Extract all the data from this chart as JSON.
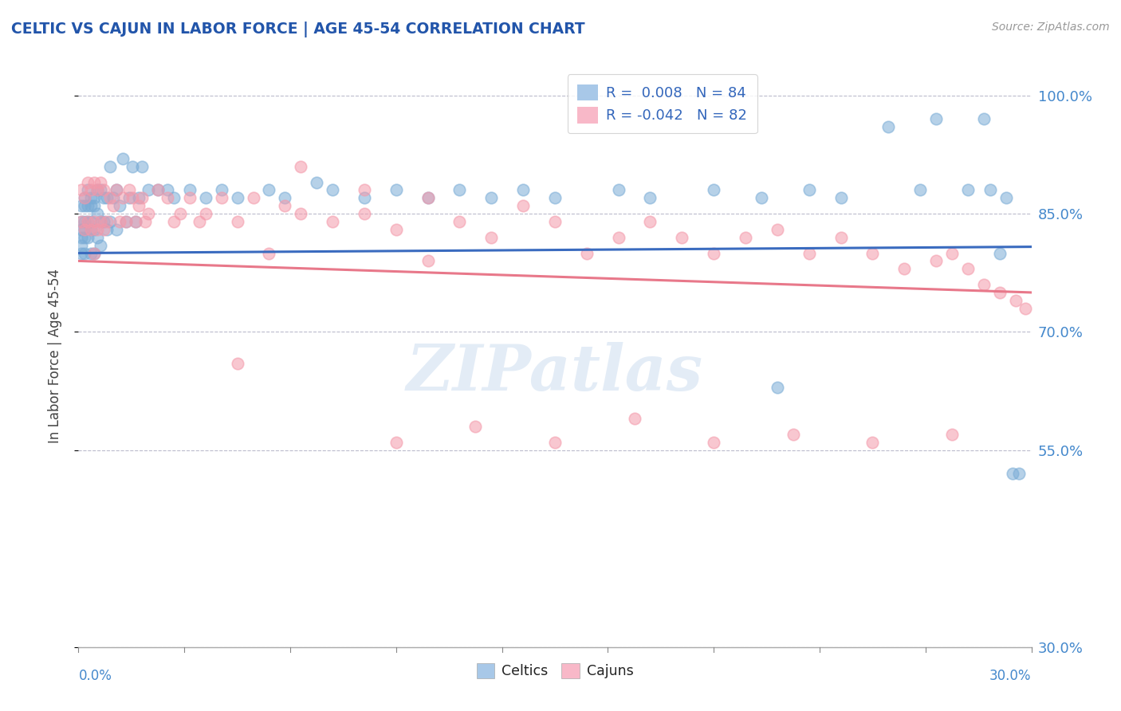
{
  "title": "CELTIC VS CAJUN IN LABOR FORCE | AGE 45-54 CORRELATION CHART",
  "source_text": "Source: ZipAtlas.com",
  "ylabel": "In Labor Force | Age 45-54",
  "yticks_labels": [
    "100.0%",
    "85.0%",
    "70.0%",
    "55.0%",
    "30.0%"
  ],
  "ytick_vals": [
    1.0,
    0.85,
    0.7,
    0.55,
    0.3
  ],
  "xmin": 0.0,
  "xmax": 0.3,
  "ymin": 0.3,
  "ymax": 1.04,
  "watermark": "ZIPatlas",
  "celtic_color": "#7aacd6",
  "cajun_color": "#f499aa",
  "celtic_line_color": "#3a6bbf",
  "cajun_line_color": "#e8788a",
  "legend_r_celtic": "R =  0.008",
  "legend_n_celtic": "N = 84",
  "legend_r_cajun": "R = -0.042",
  "legend_n_cajun": "N = 82",
  "celtic_line_x0": 0.0,
  "celtic_line_x1": 0.3,
  "celtic_line_y0": 0.8,
  "celtic_line_y1": 0.808,
  "cajun_line_x0": 0.0,
  "cajun_line_x1": 0.3,
  "cajun_line_y0": 0.79,
  "cajun_line_y1": 0.75,
  "celtics_x": [
    0.001,
    0.001,
    0.001,
    0.001,
    0.001,
    0.001,
    0.002,
    0.002,
    0.002,
    0.002,
    0.002,
    0.002,
    0.003,
    0.003,
    0.003,
    0.003,
    0.004,
    0.004,
    0.004,
    0.004,
    0.004,
    0.005,
    0.005,
    0.005,
    0.005,
    0.006,
    0.006,
    0.006,
    0.007,
    0.007,
    0.007,
    0.008,
    0.008,
    0.009,
    0.009,
    0.01,
    0.01,
    0.011,
    0.012,
    0.012,
    0.013,
    0.014,
    0.015,
    0.016,
    0.017,
    0.018,
    0.019,
    0.02,
    0.022,
    0.025,
    0.028,
    0.03,
    0.035,
    0.04,
    0.045,
    0.05,
    0.06,
    0.065,
    0.075,
    0.08,
    0.09,
    0.1,
    0.11,
    0.12,
    0.13,
    0.14,
    0.15,
    0.17,
    0.18,
    0.2,
    0.215,
    0.22,
    0.23,
    0.24,
    0.255,
    0.265,
    0.27,
    0.28,
    0.285,
    0.287,
    0.29,
    0.292,
    0.294,
    0.296
  ],
  "celtics_y": [
    0.86,
    0.84,
    0.83,
    0.82,
    0.81,
    0.8,
    0.87,
    0.86,
    0.84,
    0.83,
    0.82,
    0.8,
    0.88,
    0.86,
    0.84,
    0.82,
    0.87,
    0.86,
    0.84,
    0.83,
    0.8,
    0.87,
    0.86,
    0.83,
    0.8,
    0.88,
    0.85,
    0.82,
    0.88,
    0.84,
    0.81,
    0.87,
    0.84,
    0.87,
    0.83,
    0.91,
    0.84,
    0.87,
    0.88,
    0.83,
    0.86,
    0.92,
    0.84,
    0.87,
    0.91,
    0.84,
    0.87,
    0.91,
    0.88,
    0.88,
    0.88,
    0.87,
    0.88,
    0.87,
    0.88,
    0.87,
    0.88,
    0.87,
    0.89,
    0.88,
    0.87,
    0.88,
    0.87,
    0.88,
    0.87,
    0.88,
    0.87,
    0.88,
    0.87,
    0.88,
    0.87,
    0.63,
    0.88,
    0.87,
    0.96,
    0.88,
    0.97,
    0.88,
    0.97,
    0.88,
    0.8,
    0.87,
    0.52,
    0.52
  ],
  "cajuns_x": [
    0.001,
    0.001,
    0.002,
    0.002,
    0.003,
    0.003,
    0.004,
    0.004,
    0.005,
    0.005,
    0.005,
    0.006,
    0.006,
    0.007,
    0.007,
    0.008,
    0.008,
    0.009,
    0.01,
    0.011,
    0.012,
    0.013,
    0.014,
    0.015,
    0.016,
    0.017,
    0.018,
    0.019,
    0.02,
    0.021,
    0.022,
    0.025,
    0.028,
    0.03,
    0.032,
    0.035,
    0.038,
    0.04,
    0.045,
    0.05,
    0.055,
    0.06,
    0.065,
    0.07,
    0.08,
    0.09,
    0.1,
    0.11,
    0.12,
    0.13,
    0.14,
    0.15,
    0.16,
    0.17,
    0.18,
    0.19,
    0.2,
    0.21,
    0.22,
    0.23,
    0.24,
    0.25,
    0.26,
    0.27,
    0.275,
    0.28,
    0.285,
    0.29,
    0.295,
    0.298,
    0.1,
    0.125,
    0.15,
    0.175,
    0.2,
    0.225,
    0.25,
    0.275,
    0.05,
    0.07,
    0.09,
    0.11
  ],
  "cajuns_y": [
    0.88,
    0.84,
    0.87,
    0.83,
    0.89,
    0.84,
    0.88,
    0.83,
    0.89,
    0.84,
    0.8,
    0.88,
    0.83,
    0.89,
    0.84,
    0.88,
    0.83,
    0.84,
    0.87,
    0.86,
    0.88,
    0.84,
    0.87,
    0.84,
    0.88,
    0.87,
    0.84,
    0.86,
    0.87,
    0.84,
    0.85,
    0.88,
    0.87,
    0.84,
    0.85,
    0.87,
    0.84,
    0.85,
    0.87,
    0.84,
    0.87,
    0.8,
    0.86,
    0.85,
    0.84,
    0.85,
    0.83,
    0.87,
    0.84,
    0.82,
    0.86,
    0.84,
    0.8,
    0.82,
    0.84,
    0.82,
    0.8,
    0.82,
    0.83,
    0.8,
    0.82,
    0.8,
    0.78,
    0.79,
    0.8,
    0.78,
    0.76,
    0.75,
    0.74,
    0.73,
    0.56,
    0.58,
    0.56,
    0.59,
    0.56,
    0.57,
    0.56,
    0.57,
    0.66,
    0.91,
    0.88,
    0.79
  ]
}
